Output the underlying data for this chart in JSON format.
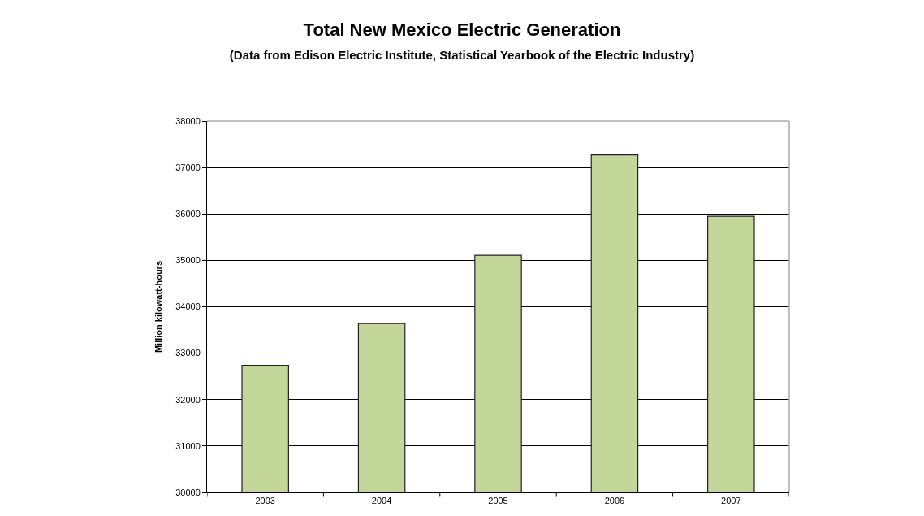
{
  "chart_data": {
    "type": "bar",
    "title": "Total New Mexico Electric Generation",
    "subtitle": "(Data from Edison Electric Institute, Statistical Yearbook of the Electric Industry)",
    "ylabel": "Million kilowatt-hours",
    "categories": [
      "2003",
      "2004",
      "2005",
      "2006",
      "2007"
    ],
    "values": [
      32740,
      33640,
      35110,
      37270,
      35950
    ],
    "color": "#c4d79b",
    "ylim": [
      30000,
      38000
    ],
    "yticks": [
      30000,
      31000,
      32000,
      33000,
      34000,
      35000,
      36000,
      37000,
      38000
    ],
    "grid": "y",
    "legend": false
  }
}
